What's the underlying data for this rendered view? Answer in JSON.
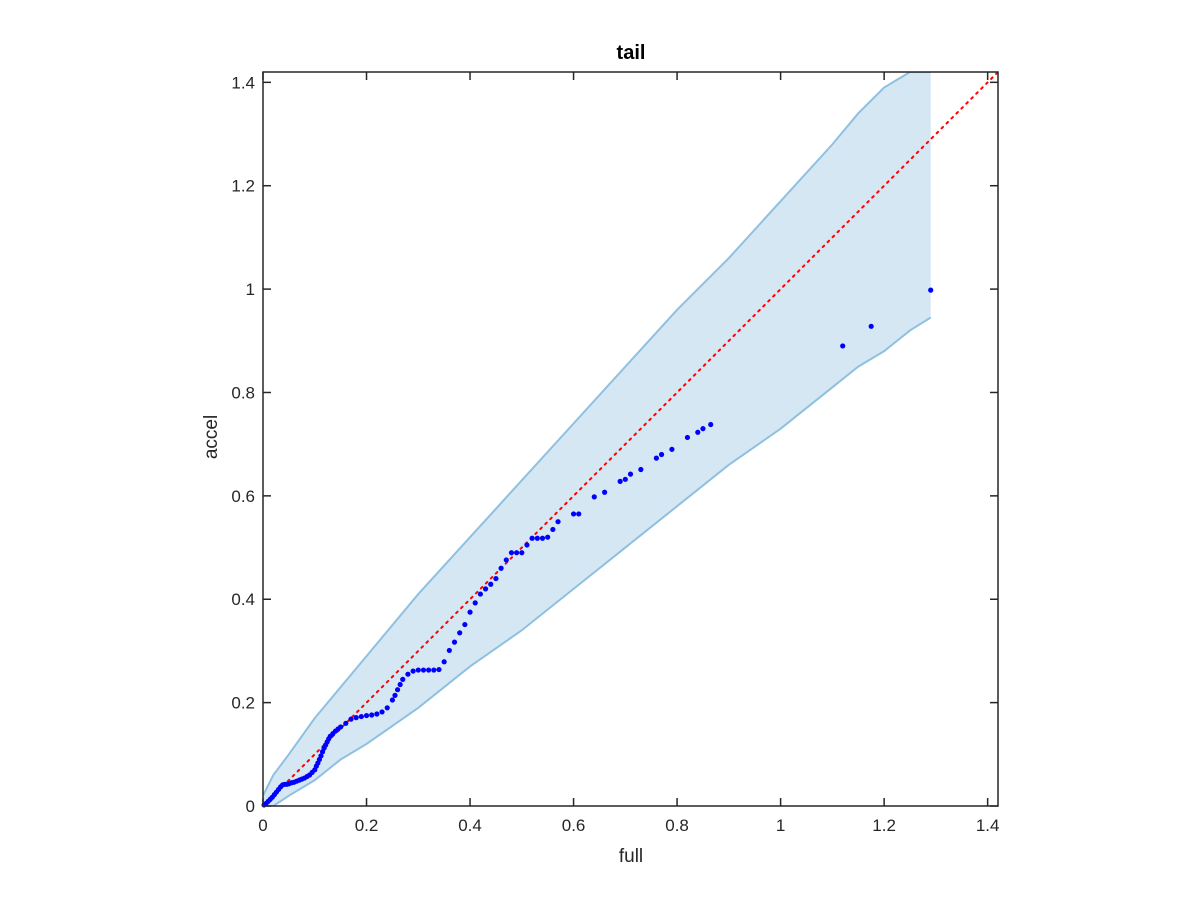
{
  "chart_data": {
    "type": "scatter",
    "title": "tail",
    "xlabel": "full",
    "ylabel": "accel",
    "xlim": [
      0,
      1.42
    ],
    "ylim": [
      0,
      1.42
    ],
    "x_ticks": [
      0,
      0.2,
      0.4,
      0.6,
      0.8,
      1,
      1.2,
      1.4
    ],
    "y_ticks": [
      0,
      0.2,
      0.4,
      0.6,
      0.8,
      1,
      1.2,
      1.4
    ],
    "x_tick_labels": [
      "0",
      "0.2",
      "0.4",
      "0.6",
      "0.8",
      "1",
      "1.2",
      "1.4"
    ],
    "y_tick_labels": [
      "0",
      "0.2",
      "0.4",
      "0.6",
      "0.8",
      "1",
      "1.2",
      "1.4"
    ],
    "grid": false,
    "legend": false,
    "colors": {
      "points": "#0000ff",
      "band_fill": "#d6e7f4",
      "band_edge": "#8fc0e0",
      "reference_line": "#ff0000",
      "axes": "#262626"
    },
    "confidence_band": {
      "x": [
        0,
        0.02,
        0.05,
        0.1,
        0.15,
        0.2,
        0.3,
        0.4,
        0.5,
        0.6,
        0.7,
        0.8,
        0.9,
        1.0,
        1.1,
        1.15,
        1.2,
        1.25,
        1.29
      ],
      "upper": [
        0.02,
        0.06,
        0.1,
        0.17,
        0.23,
        0.29,
        0.41,
        0.52,
        0.63,
        0.74,
        0.85,
        0.96,
        1.06,
        1.17,
        1.28,
        1.34,
        1.39,
        1.42,
        1.42
      ],
      "lower": [
        0,
        0.0,
        0.02,
        0.05,
        0.09,
        0.12,
        0.19,
        0.27,
        0.34,
        0.42,
        0.5,
        0.58,
        0.66,
        0.73,
        0.81,
        0.85,
        0.88,
        0.92,
        0.945
      ]
    },
    "reference_line": {
      "style": "dotted",
      "x": [
        0,
        1.42
      ],
      "y": [
        0,
        1.42
      ]
    },
    "points": {
      "x": [
        0.002,
        0.006,
        0.01,
        0.014,
        0.018,
        0.022,
        0.026,
        0.03,
        0.034,
        0.038,
        0.042,
        0.046,
        0.05,
        0.055,
        0.06,
        0.065,
        0.07,
        0.075,
        0.08,
        0.085,
        0.09,
        0.095,
        0.1,
        0.103,
        0.106,
        0.109,
        0.112,
        0.115,
        0.118,
        0.121,
        0.124,
        0.127,
        0.13,
        0.135,
        0.14,
        0.145,
        0.15,
        0.16,
        0.17,
        0.18,
        0.19,
        0.2,
        0.21,
        0.22,
        0.23,
        0.24,
        0.25,
        0.255,
        0.26,
        0.265,
        0.27,
        0.28,
        0.29,
        0.3,
        0.31,
        0.32,
        0.33,
        0.34,
        0.35,
        0.36,
        0.37,
        0.38,
        0.39,
        0.4,
        0.41,
        0.42,
        0.43,
        0.44,
        0.45,
        0.46,
        0.47,
        0.48,
        0.49,
        0.5,
        0.51,
        0.52,
        0.53,
        0.54,
        0.55,
        0.56,
        0.57,
        0.6,
        0.61,
        0.64,
        0.66,
        0.69,
        0.7,
        0.71,
        0.73,
        0.76,
        0.77,
        0.79,
        0.82,
        0.84,
        0.85,
        0.865,
        1.12,
        1.175,
        1.29
      ],
      "y": [
        0.002,
        0.005,
        0.009,
        0.013,
        0.017,
        0.022,
        0.027,
        0.032,
        0.037,
        0.041,
        0.042,
        0.042,
        0.043,
        0.045,
        0.046,
        0.048,
        0.05,
        0.052,
        0.054,
        0.057,
        0.06,
        0.065,
        0.07,
        0.077,
        0.083,
        0.09,
        0.097,
        0.105,
        0.112,
        0.118,
        0.124,
        0.13,
        0.135,
        0.14,
        0.145,
        0.149,
        0.153,
        0.16,
        0.168,
        0.171,
        0.173,
        0.175,
        0.176,
        0.178,
        0.182,
        0.19,
        0.205,
        0.214,
        0.225,
        0.235,
        0.245,
        0.255,
        0.261,
        0.263,
        0.263,
        0.263,
        0.263,
        0.264,
        0.279,
        0.301,
        0.317,
        0.335,
        0.351,
        0.375,
        0.393,
        0.41,
        0.42,
        0.429,
        0.44,
        0.46,
        0.476,
        0.49,
        0.49,
        0.49,
        0.505,
        0.518,
        0.518,
        0.518,
        0.52,
        0.535,
        0.55,
        0.565,
        0.565,
        0.598,
        0.607,
        0.628,
        0.632,
        0.642,
        0.651,
        0.673,
        0.68,
        0.69,
        0.713,
        0.723,
        0.73,
        0.738,
        0.89,
        0.928,
        0.998
      ]
    }
  }
}
